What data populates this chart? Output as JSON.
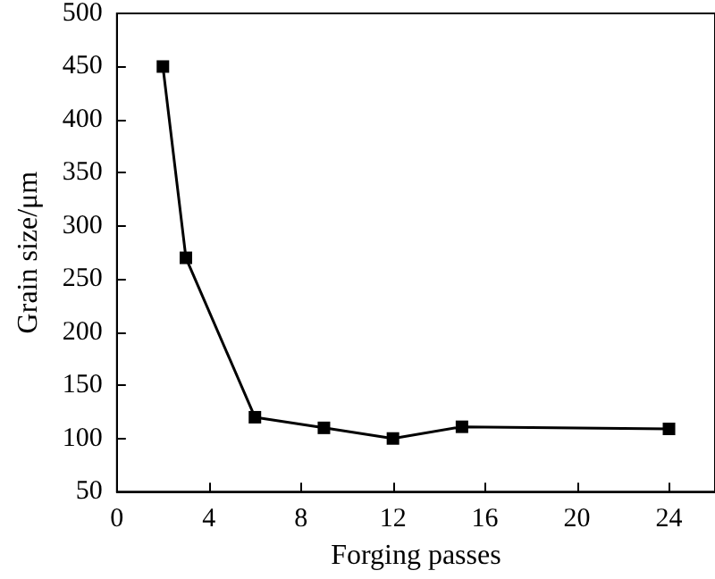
{
  "chart_data": {
    "type": "line",
    "xlabel": "Forging passes",
    "ylabel": "Grain size/μm",
    "x": [
      2,
      3,
      6,
      9,
      12,
      15,
      24
    ],
    "series": [
      {
        "color": "#000000",
        "values": [
          450,
          270,
          120,
          110,
          100,
          111,
          109
        ]
      }
    ],
    "xlim": [
      0,
      26
    ],
    "xticks": [
      0,
      4,
      8,
      12,
      16,
      20,
      24
    ],
    "ylim": [
      50,
      500
    ],
    "yticks": [
      50,
      100,
      150,
      200,
      250,
      300,
      350,
      400,
      450,
      500
    ],
    "grid": false,
    "marker": "square",
    "line_style": "solid"
  }
}
